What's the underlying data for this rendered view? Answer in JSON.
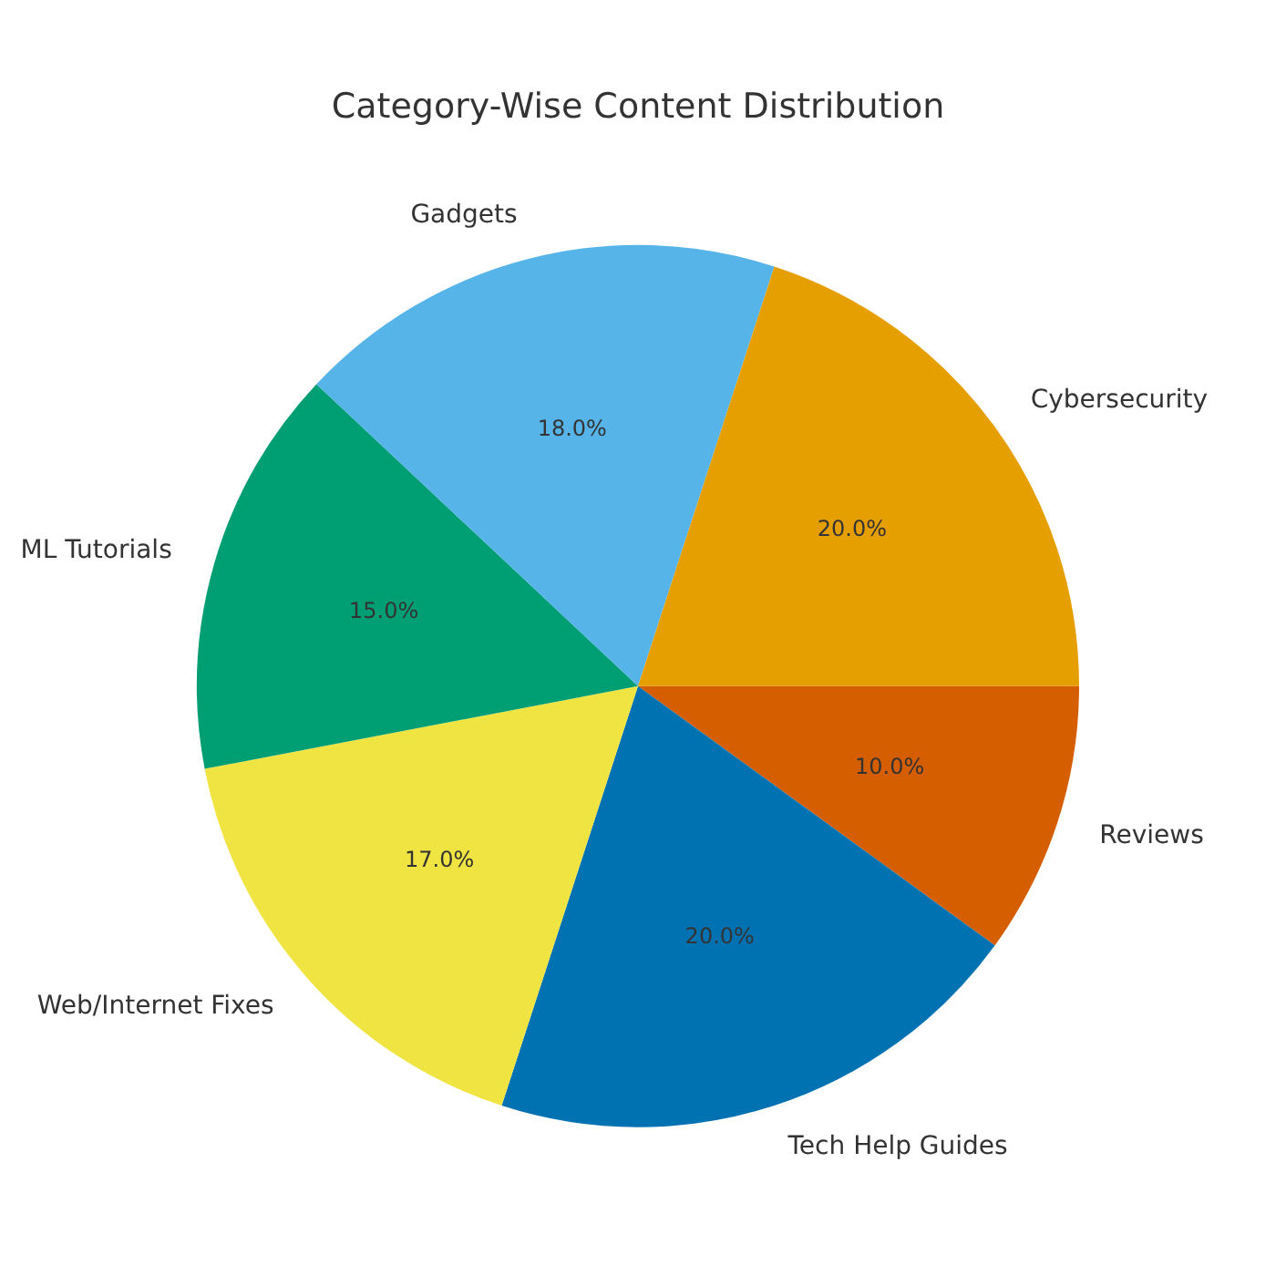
{
  "chart_data": {
    "type": "pie",
    "title": "Category-Wise Content Distribution",
    "categories": [
      "Reviews",
      "Tech Help Guides",
      "Web/Internet Fixes",
      "ML Tutorials",
      "Gadgets",
      "Cybersecurity"
    ],
    "values": [
      10,
      20,
      17,
      15,
      18,
      20
    ],
    "colors": [
      "#d55e00",
      "#0072b2",
      "#f0e442",
      "#009e73",
      "#56b4e9",
      "#e69f00"
    ],
    "value_labels": [
      "10.0%",
      "20.0%",
      "17.0%",
      "15.0%",
      "18.0%",
      "20.0%"
    ],
    "legend": false
  }
}
